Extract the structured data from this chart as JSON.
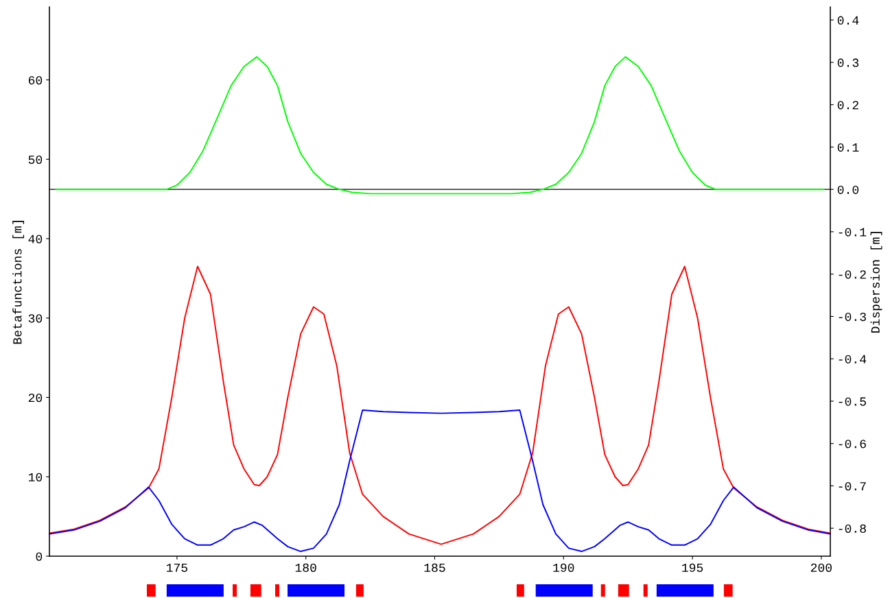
{
  "chart_data": [
    {
      "type": "line",
      "ylabel": "Betafunctions [m]",
      "y2label": "Dispersion [m]",
      "xlim": [
        170.05,
        200.35
      ],
      "xticks": [
        175,
        180,
        185,
        190,
        195,
        200
      ],
      "ylim": [
        0,
        69.2
      ],
      "yticks": [
        0,
        10,
        20,
        30,
        40,
        50,
        60
      ],
      "y2lim": [
        -0.866,
        0.431
      ],
      "y2ticks": [
        {
          "value": -0.8,
          "label": "-0.8"
        },
        {
          "value": -0.7,
          "label": "-0.7"
        },
        {
          "value": -0.6,
          "label": "-0.6"
        },
        {
          "value": -0.5,
          "label": "-0.5"
        },
        {
          "value": -0.4,
          "label": "-0.4"
        },
        {
          "value": -0.3,
          "label": "-0.3"
        },
        {
          "value": -0.2,
          "label": "-0.2"
        },
        {
          "value": -0.1,
          "label": "-0.1"
        },
        {
          "value": 0.0,
          "label": "0.0"
        },
        {
          "value": 0.1,
          "label": "0.1"
        },
        {
          "value": 0.2,
          "label": "0.2"
        },
        {
          "value": 0.3,
          "label": "0.3"
        },
        {
          "value": 0.4,
          "label": "0.4"
        }
      ],
      "ref_lines": [
        {
          "axis": "y2",
          "value": 0,
          "color": "#000000"
        }
      ],
      "grid": false,
      "legend": false,
      "marker": "none",
      "line_style": "solid",
      "series": [
        {
          "color": "#ff0000",
          "x": [
            170.05,
            171,
            172,
            173,
            173.9,
            174.3,
            174.8,
            175.3,
            175.8,
            176.3,
            176.8,
            177.2,
            177.6,
            178,
            178.2,
            178.5,
            178.9,
            179.3,
            179.8,
            180.3,
            180.7,
            181.2,
            181.7,
            182.2,
            183,
            184,
            185.25,
            186.5,
            187.5,
            188.3,
            188.8,
            189.3,
            189.8,
            190.2,
            190.7,
            191.2,
            191.6,
            192,
            192.3,
            192.5,
            192.9,
            193.3,
            193.7,
            194.2,
            194.7,
            195.2,
            195.7,
            196.2,
            196.6,
            197.5,
            198.5,
            199.5,
            200.35
          ],
          "values": [
            2.9,
            3.4,
            4.5,
            6.2,
            8.6,
            11,
            20,
            30,
            36.5,
            33,
            22,
            14,
            11,
            9,
            8.9,
            10,
            12.8,
            20,
            28,
            31.4,
            30.5,
            24,
            13,
            7.8,
            5,
            2.8,
            1.5,
            2.8,
            5,
            7.8,
            13,
            24,
            30.5,
            31.4,
            28,
            20,
            12.8,
            10,
            8.9,
            9,
            11,
            14,
            22,
            33,
            36.5,
            30,
            20,
            11,
            8.6,
            6.2,
            4.5,
            3.4,
            2.9
          ]
        },
        {
          "color": "#0000ff",
          "x": [
            170.05,
            171,
            172,
            173,
            173.9,
            174.3,
            174.8,
            175.3,
            175.8,
            176.3,
            176.8,
            177.2,
            177.6,
            178,
            178.3,
            178.9,
            179.3,
            179.8,
            180.3,
            180.8,
            181.3,
            181.7,
            182.2,
            183,
            184,
            185.25,
            186.5,
            187.5,
            188.3,
            188.8,
            189.2,
            189.7,
            190.2,
            190.7,
            191.2,
            191.6,
            192.2,
            192.5,
            192.9,
            193.3,
            193.7,
            194.2,
            194.7,
            195.2,
            195.7,
            196.2,
            196.6,
            197.5,
            198.5,
            199.5,
            200.35
          ],
          "values": [
            2.8,
            3.3,
            4.4,
            6.1,
            8.7,
            7,
            4,
            2.2,
            1.4,
            1.4,
            2.2,
            3.3,
            3.7,
            4.3,
            3.9,
            2.2,
            1.2,
            0.6,
            1,
            2.8,
            6.5,
            12,
            18.4,
            18.2,
            18.1,
            18,
            18.1,
            18.2,
            18.4,
            12,
            6.5,
            2.8,
            1,
            0.6,
            1.2,
            2.2,
            3.9,
            4.3,
            3.7,
            3.3,
            2.2,
            1.4,
            1.4,
            2.2,
            4,
            7,
            8.7,
            6.1,
            4.4,
            3.3,
            2.8
          ]
        },
        {
          "color": "#00ff00",
          "axis": "y2",
          "x": [
            170.3,
            174.6,
            175,
            175.5,
            176,
            176.5,
            177.1,
            177.6,
            178.1,
            178.5,
            178.9,
            179.3,
            179.8,
            180.3,
            180.8,
            181.3,
            181.8,
            182.5,
            185.25,
            188,
            188.7,
            189.2,
            189.7,
            190.2,
            190.7,
            191.2,
            191.6,
            192,
            192.4,
            192.9,
            193.4,
            194,
            194.5,
            195,
            195.5,
            195.9,
            200.1
          ],
          "values": [
            0,
            0,
            0.01,
            0.04,
            0.09,
            0.16,
            0.245,
            0.29,
            0.313,
            0.29,
            0.245,
            0.16,
            0.085,
            0.04,
            0.012,
            0,
            -0.007,
            -0.01,
            -0.01,
            -0.01,
            -0.007,
            0,
            0.012,
            0.04,
            0.085,
            0.16,
            0.245,
            0.29,
            0.313,
            0.29,
            0.245,
            0.16,
            0.09,
            0.04,
            0.01,
            0,
            0
          ]
        }
      ]
    },
    {
      "type": "bar",
      "orientation": "horizontal",
      "categories": [
        null
      ],
      "xlim": [
        170.05,
        200.35
      ],
      "tick_labels": false,
      "series": [
        {
          "color": "#ff0000",
          "base": [
            173.83
          ],
          "values": [
            0.34
          ]
        },
        {
          "color": "#0000ff",
          "base": [
            174.6
          ],
          "values": [
            2.21
          ]
        },
        {
          "color": "#ff0000",
          "base": [
            177.16
          ],
          "values": [
            0.16
          ]
        },
        {
          "color": "#ff0000",
          "base": [
            177.85
          ],
          "values": [
            0.42
          ]
        },
        {
          "color": "#ff0000",
          "base": [
            178.81
          ],
          "values": [
            0.16
          ]
        },
        {
          "color": "#0000ff",
          "base": [
            179.29
          ],
          "values": [
            2.21
          ]
        },
        {
          "color": "#ff0000",
          "base": [
            181.95
          ],
          "values": [
            0.29
          ]
        },
        {
          "color": "#ff0000",
          "base": [
            188.18
          ],
          "values": [
            0.29
          ]
        },
        {
          "color": "#0000ff",
          "base": [
            188.92
          ],
          "values": [
            2.21
          ]
        },
        {
          "color": "#ff0000",
          "base": [
            191.45
          ],
          "values": [
            0.16
          ]
        },
        {
          "color": "#ff0000",
          "base": [
            192.12
          ],
          "values": [
            0.42
          ]
        },
        {
          "color": "#ff0000",
          "base": [
            193.1
          ],
          "values": [
            0.16
          ]
        },
        {
          "color": "#0000ff",
          "base": [
            193.61
          ],
          "values": [
            2.21
          ]
        },
        {
          "color": "#ff0000",
          "base": [
            196.22
          ],
          "values": [
            0.34
          ]
        }
      ]
    }
  ]
}
